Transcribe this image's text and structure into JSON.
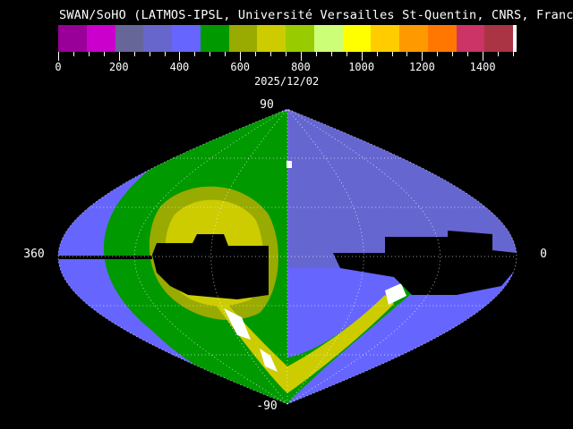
{
  "title": "SWAN/SoHO (LATMOS-IPSL, Université Versailles St-Quentin, CNRS, France)",
  "date": "2025/12/02",
  "colorbar": {
    "min": 0,
    "max": 1500,
    "tick_labels": [
      "0",
      "200",
      "400",
      "600",
      "800",
      "1000",
      "1200",
      "1400"
    ],
    "colors": [
      "#990099",
      "#cc00cc",
      "#666699",
      "#6666cc",
      "#6666ff",
      "#009900",
      "#99aa00",
      "#cccc00",
      "#99cc00",
      "#ccff77",
      "#ffff00",
      "#ffcc00",
      "#ff9900",
      "#ff7700",
      "#cc3366",
      "#aa3344",
      "#ffffff"
    ]
  },
  "map": {
    "projection": "sinusoidal",
    "labels": {
      "top": "90",
      "bottom": "-90",
      "left": "360",
      "right": "0"
    },
    "background_color": "#6666ff",
    "no_data_color": "#000000"
  }
}
